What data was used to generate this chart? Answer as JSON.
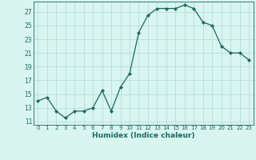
{
  "x": [
    0,
    1,
    2,
    3,
    4,
    5,
    6,
    7,
    8,
    9,
    10,
    11,
    12,
    13,
    14,
    15,
    16,
    17,
    18,
    19,
    20,
    21,
    22,
    23
  ],
  "y": [
    14,
    14.5,
    12.5,
    11.5,
    12.5,
    12.5,
    13,
    15.5,
    12.5,
    16,
    18,
    24,
    26.5,
    27.5,
    27.5,
    27.5,
    28,
    27.5,
    25.5,
    25,
    22,
    21,
    21,
    20
  ],
  "xlabel": "Humidex (Indice chaleur)",
  "ylim": [
    10.5,
    28.5
  ],
  "xlim": [
    -0.5,
    23.5
  ],
  "yticks": [
    11,
    13,
    15,
    17,
    19,
    21,
    23,
    25,
    27
  ],
  "xtick_labels": [
    "0",
    "1",
    "2",
    "3",
    "4",
    "5",
    "6",
    "7",
    "8",
    "9",
    "10",
    "11",
    "12",
    "13",
    "14",
    "15",
    "16",
    "17",
    "18",
    "19",
    "20",
    "21",
    "22",
    "23"
  ],
  "line_color": "#1a6b5a",
  "marker_color": "#1a6b5a",
  "bg_color": "#d8f5f0",
  "grid_color": "#b8ddd8"
}
